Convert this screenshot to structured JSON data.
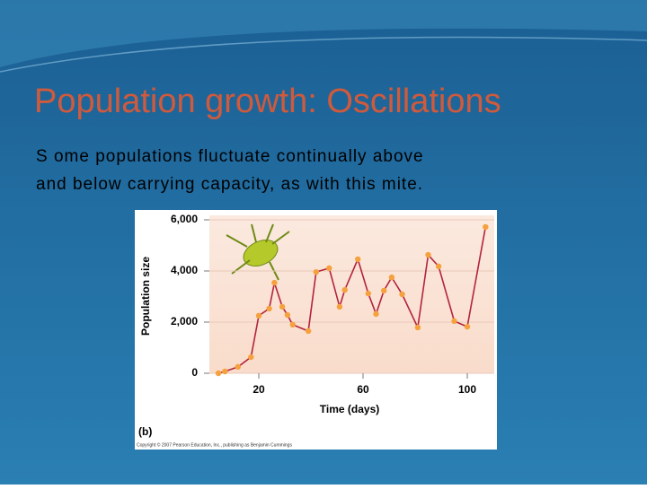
{
  "title": "Population growth: Oscillations",
  "body": [
    "S ome populations fluctuate continually above",
    "and below  carrying capacity, as with this  mite."
  ],
  "chart_data": {
    "type": "line",
    "panel_label": "(b)",
    "copyright": "Copyright © 2007 Pearson Education, Inc., publishing as Benjamin Cummings",
    "xlabel": "Time (days)",
    "ylabel": "Population size",
    "x": [
      4.5,
      7,
      12,
      17,
      20,
      24,
      26,
      29,
      31,
      33,
      39,
      42,
      47,
      51,
      53,
      58,
      62,
      65,
      68,
      71,
      75,
      81,
      85,
      89,
      95,
      100,
      107
    ],
    "values": [
      0,
      70,
      250,
      630,
      2250,
      2530,
      3540,
      2600,
      2280,
      1900,
      1650,
      3960,
      4110,
      2600,
      3260,
      4460,
      3120,
      2320,
      3230,
      3750,
      3090,
      1790,
      4630,
      4180,
      2040,
      1820,
      5720
    ],
    "color": "#b3243b",
    "marker_color": "#f5a23e",
    "xlim": [
      0,
      110
    ],
    "xticks": [
      20,
      60,
      100
    ],
    "ylim": [
      0,
      6000
    ],
    "yticks": [
      0,
      {
        "value": 2000,
        "label": "2,000"
      },
      {
        "value": 4000,
        "label": "4,000"
      },
      {
        "value": 6000,
        "label": "6,000"
      }
    ],
    "grid": true
  }
}
